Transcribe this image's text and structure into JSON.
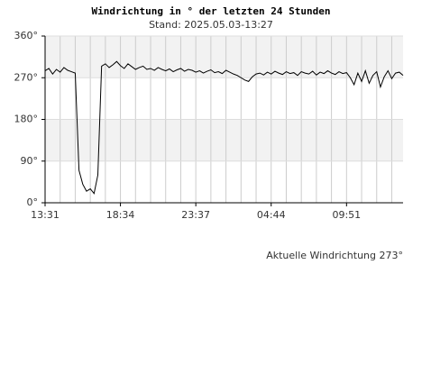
{
  "chart_data": {
    "type": "line",
    "title": "Windrichtung in ° der letzten 24 Stunden",
    "subtitle": "Stand: 2025.05.03-13:27",
    "annotation": "Aktuelle Windrichtung 273°",
    "categories": [
      "13:31",
      null,
      null,
      null,
      null,
      null,
      null,
      null,
      null,
      null,
      null,
      null,
      null,
      null,
      null,
      null,
      null,
      null,
      null,
      null,
      "18:34",
      null,
      null,
      null,
      null,
      null,
      null,
      null,
      null,
      null,
      null,
      null,
      null,
      null,
      null,
      null,
      null,
      null,
      null,
      null,
      "23:37",
      null,
      null,
      null,
      null,
      null,
      null,
      null,
      null,
      null,
      null,
      null,
      null,
      null,
      null,
      null,
      null,
      null,
      null,
      null,
      "04:44",
      null,
      null,
      null,
      null,
      null,
      null,
      null,
      null,
      null,
      null,
      null,
      null,
      null,
      null,
      null,
      null,
      null,
      null,
      null,
      "09:51",
      null,
      null,
      null,
      null,
      null,
      null,
      null,
      null,
      null,
      null,
      null,
      null,
      null,
      null,
      null
    ],
    "values": [
      285,
      290,
      278,
      288,
      282,
      292,
      286,
      283,
      280,
      70,
      40,
      25,
      30,
      20,
      60,
      295,
      300,
      292,
      298,
      305,
      296,
      290,
      300,
      294,
      288,
      292,
      295,
      288,
      290,
      286,
      292,
      288,
      285,
      289,
      283,
      287,
      290,
      284,
      288,
      286,
      282,
      285,
      280,
      284,
      287,
      281,
      283,
      279,
      286,
      282,
      278,
      275,
      270,
      265,
      262,
      272,
      278,
      280,
      276,
      282,
      278,
      284,
      280,
      277,
      283,
      279,
      281,
      275,
      283,
      280,
      278,
      284,
      276,
      282,
      279,
      285,
      280,
      277,
      283,
      279,
      281,
      270,
      255,
      280,
      262,
      285,
      258,
      275,
      283,
      250,
      272,
      285,
      268,
      280,
      282,
      275
    ],
    "color": "#000000",
    "ylim": [
      0,
      360
    ],
    "yticks": [
      {
        "value": 0,
        "label": "0°"
      },
      {
        "value": 90,
        "label": "90°"
      },
      {
        "value": 180,
        "label": "180°"
      },
      {
        "value": 270,
        "label": "270°"
      },
      {
        "value": 360,
        "label": "360°"
      }
    ],
    "grid": true
  }
}
